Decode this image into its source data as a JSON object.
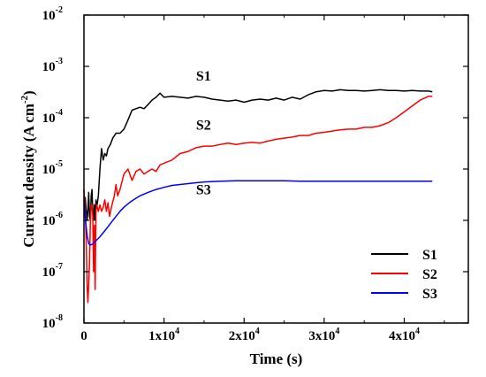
{
  "chart_data": {
    "type": "line",
    "title": "",
    "xlabel": "Time (s)",
    "ylabel_main": "Current density (A cm",
    "ylabel_exp": "-2",
    "ylabel_tail": ")",
    "xlim": [
      0,
      48000
    ],
    "ylim": [
      1e-08,
      0.01
    ],
    "yscale": "log",
    "grid": false,
    "legend_position": "bottom-right",
    "x_ticks": [
      {
        "value": 0,
        "base": "0",
        "exp": ""
      },
      {
        "value": 10000,
        "base": "1x10",
        "exp": "4"
      },
      {
        "value": 20000,
        "base": "2x10",
        "exp": "4"
      },
      {
        "value": 30000,
        "base": "3x10",
        "exp": "4"
      },
      {
        "value": 40000,
        "base": "4x10",
        "exp": "4"
      }
    ],
    "y_ticks": [
      {
        "value": 1e-08,
        "base": "10",
        "exp": "-8"
      },
      {
        "value": 1e-07,
        "base": "10",
        "exp": "-7"
      },
      {
        "value": 1e-06,
        "base": "10",
        "exp": "-6"
      },
      {
        "value": 1e-05,
        "base": "10",
        "exp": "-5"
      },
      {
        "value": 0.0001,
        "base": "10",
        "exp": "-4"
      },
      {
        "value": 0.001,
        "base": "10",
        "exp": "-3"
      },
      {
        "value": 0.01,
        "base": "10",
        "exp": "-2"
      }
    ],
    "series": [
      {
        "name": "S1",
        "color": "#000000",
        "x": [
          0,
          150,
          300,
          400,
          500,
          600,
          700,
          800,
          900,
          1000,
          1100,
          1200,
          1300,
          1400,
          1500,
          1600,
          1800,
          2000,
          2200,
          2400,
          2600,
          2800,
          3000,
          3300,
          3600,
          4000,
          4500,
          5000,
          5500,
          6000,
          6500,
          7000,
          7500,
          8000,
          8500,
          9000,
          9500,
          10000,
          11000,
          12000,
          13000,
          14000,
          15000,
          16000,
          17000,
          18000,
          19000,
          20000,
          21000,
          22000,
          23000,
          24000,
          25000,
          26000,
          27000,
          28000,
          29000,
          30000,
          31000,
          32000,
          33000,
          34000,
          35000,
          36000,
          37000,
          38000,
          39000,
          40000,
          41000,
          42000,
          43000,
          43500
        ],
        "values": [
          2.5e-06,
          2.8e-06,
          1.5e-06,
          1e-06,
          1.6e-06,
          3.5e-06,
          1.2e-06,
          1e-06,
          3e-06,
          4e-06,
          1.5e-06,
          1e-06,
          2e-06,
          1e-06,
          2.5e-06,
          1.8e-06,
          3e-06,
          1e-05,
          2.5e-05,
          1.5e-05,
          2e-05,
          1.8e-05,
          2.5e-05,
          3e-05,
          4e-05,
          5e-05,
          5e-05,
          6e-05,
          9e-05,
          0.00014,
          0.00015,
          0.00016,
          0.00015,
          0.00018,
          0.00022,
          0.00025,
          0.0003,
          0.00025,
          0.00026,
          0.00025,
          0.00024,
          0.00026,
          0.00025,
          0.00023,
          0.00022,
          0.00021,
          0.00022,
          0.0002,
          0.00022,
          0.00023,
          0.00022,
          0.00024,
          0.00022,
          0.00025,
          0.00023,
          0.00028,
          0.00032,
          0.00034,
          0.00033,
          0.00035,
          0.00034,
          0.00034,
          0.00033,
          0.00034,
          0.00035,
          0.00034,
          0.00034,
          0.00033,
          0.00034,
          0.00033,
          0.00033,
          0.00032
        ]
      },
      {
        "name": "S2",
        "color": "#ff0000",
        "x": [
          0,
          100,
          200,
          300,
          400,
          500,
          600,
          700,
          800,
          900,
          1000,
          1100,
          1200,
          1300,
          1400,
          1500,
          1600,
          1800,
          2000,
          2200,
          2400,
          2600,
          2800,
          3000,
          3200,
          3500,
          3800,
          4000,
          4200,
          4500,
          5000,
          5500,
          6000,
          6500,
          7000,
          7500,
          8000,
          8500,
          9000,
          9500,
          10000,
          11000,
          12000,
          13000,
          14000,
          15000,
          16000,
          17000,
          18000,
          19000,
          20000,
          21000,
          22000,
          23000,
          24000,
          25000,
          26000,
          27000,
          28000,
          29000,
          30000,
          31000,
          32000,
          33000,
          34000,
          35000,
          36000,
          37000,
          38000,
          39000,
          40000,
          41000,
          42000,
          43000,
          43500
        ],
        "values": [
          4e-06,
          2e-06,
          1e-06,
          3e-07,
          5e-08,
          2.5e-08,
          6e-08,
          1.5e-07,
          1e-06,
          2e-06,
          2e-06,
          1.2e-06,
          1e-07,
          8e-07,
          4.5e-08,
          1.5e-06,
          2e-06,
          1.5e-06,
          2e-06,
          1.5e-06,
          1.8e-06,
          2.5e-06,
          1.5e-06,
          2.2e-06,
          1.2e-06,
          2e-06,
          3e-06,
          5e-06,
          3e-06,
          4e-06,
          8e-06,
          1e-05,
          6e-06,
          9e-06,
          1e-05,
          8e-06,
          9e-06,
          1e-05,
          9e-06,
          1.2e-05,
          1.3e-05,
          1.5e-05,
          2e-05,
          2.2e-05,
          2.6e-05,
          2.8e-05,
          2.8e-05,
          3e-05,
          3.2e-05,
          3e-05,
          3.2e-05,
          3.3e-05,
          3.2e-05,
          3.5e-05,
          3.8e-05,
          4e-05,
          4.2e-05,
          4.5e-05,
          4.5e-05,
          5e-05,
          5.2e-05,
          5.5e-05,
          5.8e-05,
          6e-05,
          6e-05,
          6.5e-05,
          6.5e-05,
          7e-05,
          8e-05,
          0.0001,
          0.00013,
          0.00017,
          0.00022,
          0.00026,
          0.00026
        ]
      },
      {
        "name": "S3",
        "color": "#0000ff",
        "x": [
          0,
          200,
          400,
          600,
          800,
          1000,
          1200,
          1500,
          2000,
          2500,
          3000,
          3500,
          4000,
          4500,
          5000,
          5500,
          6000,
          7000,
          8000,
          9000,
          10000,
          11000,
          12000,
          13000,
          14000,
          15000,
          17000,
          19000,
          21000,
          23000,
          25000,
          27000,
          29000,
          31000,
          33000,
          35000,
          37000,
          39000,
          41000,
          43000,
          43500
        ],
        "values": [
          2.5e-06,
          1e-06,
          5e-07,
          3.5e-07,
          3.3e-07,
          3.4e-07,
          3.6e-07,
          4e-07,
          4.8e-07,
          6e-07,
          7.5e-07,
          9.5e-07,
          1.2e-06,
          1.5e-06,
          1.8e-06,
          2.1e-06,
          2.4e-06,
          3e-06,
          3.5e-06,
          4e-06,
          4.4e-06,
          4.8e-06,
          5e-06,
          5.2e-06,
          5.4e-06,
          5.6e-06,
          5.8e-06,
          5.9e-06,
          5.9e-06,
          5.9e-06,
          5.9e-06,
          5.8e-06,
          5.8e-06,
          5.8e-06,
          5.8e-06,
          5.8e-06,
          5.8e-06,
          5.8e-06,
          5.8e-06,
          5.8e-06,
          5.8e-06
        ]
      }
    ],
    "annotations": [
      {
        "text": "S1",
        "x": 14000,
        "y": 0.00053
      },
      {
        "text": "S2",
        "x": 14000,
        "y": 5.8e-05
      },
      {
        "text": "S3",
        "x": 14000,
        "y": 3.2e-06
      }
    ]
  }
}
